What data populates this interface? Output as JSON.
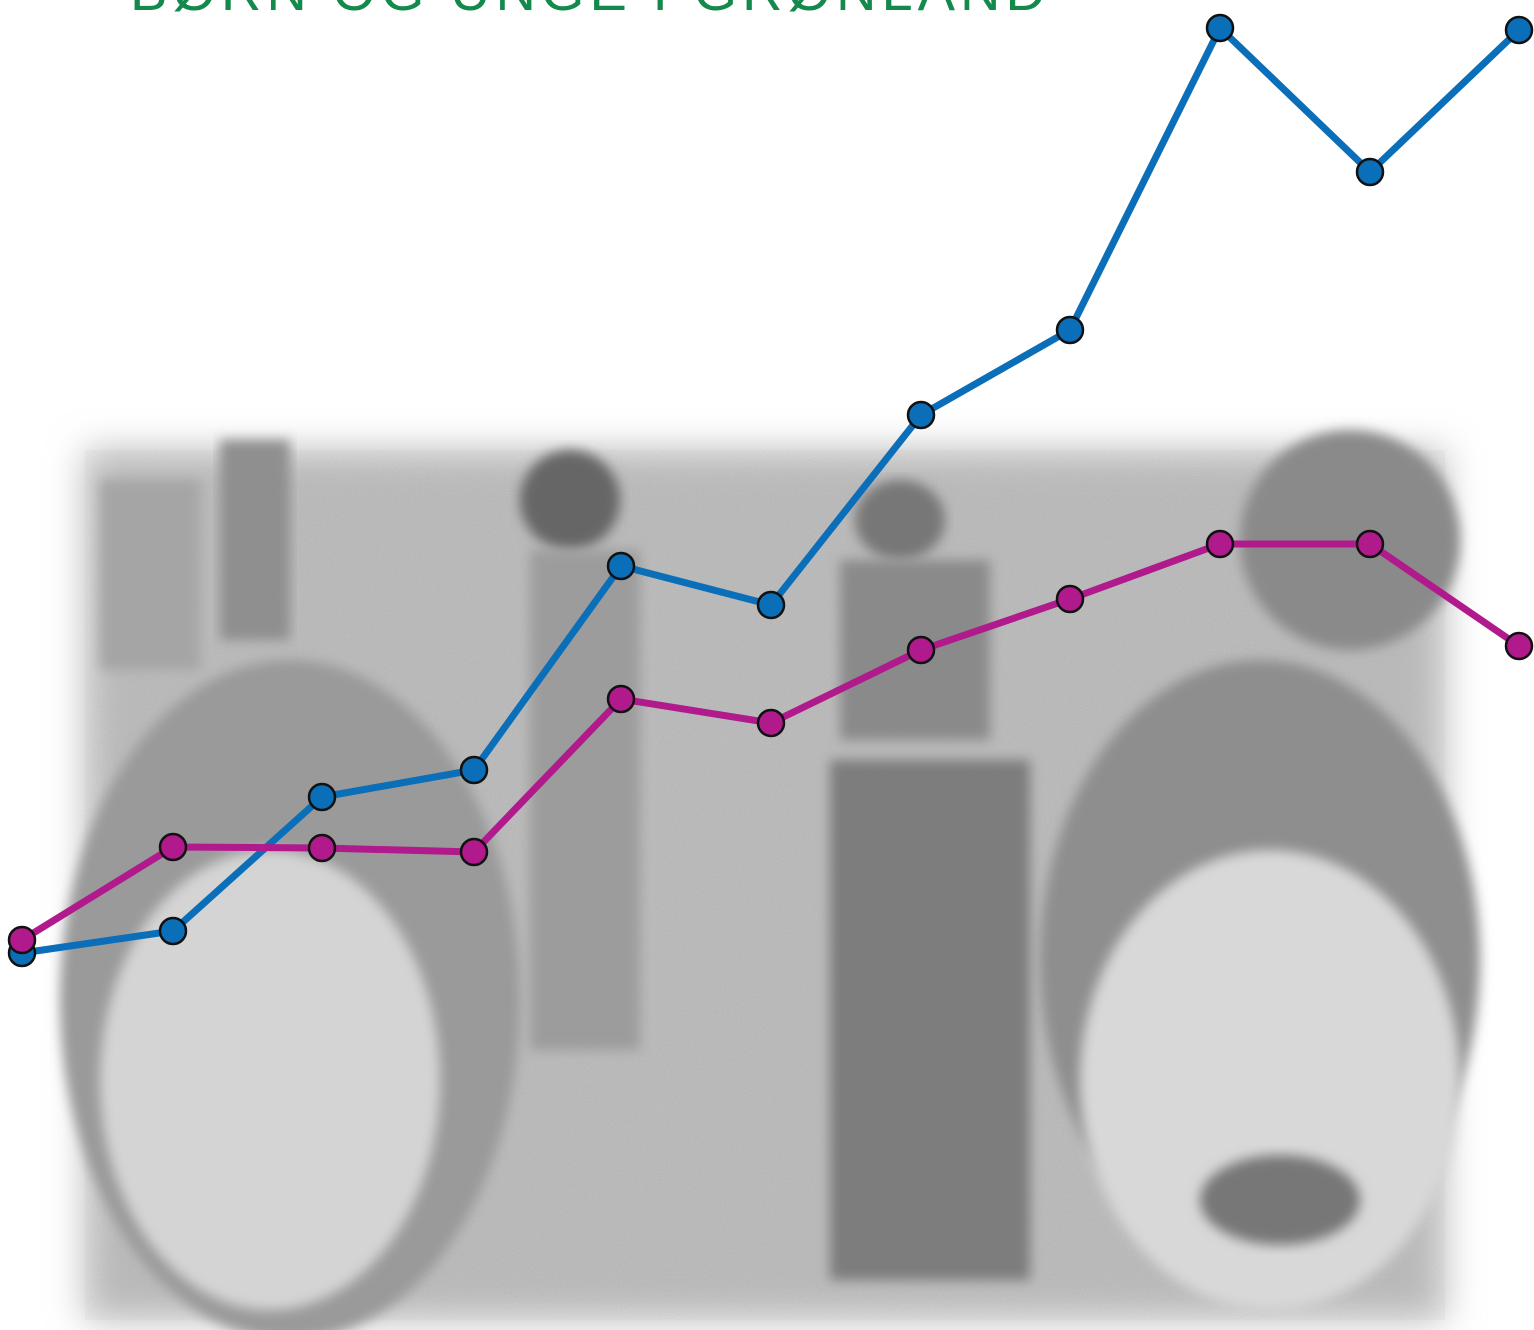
{
  "header": {
    "title": "BØRN OG UNGE I GRØNLAND"
  }
}
